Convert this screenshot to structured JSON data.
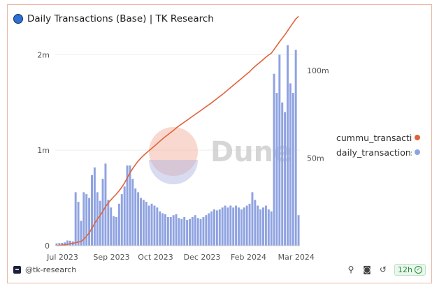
{
  "header": {
    "title": "Daily Transactions (Base) | TK Research"
  },
  "footer": {
    "handle": "@tk-research",
    "refresh_badge": "12h",
    "icons": [
      "pin-icon",
      "camera-icon",
      "refresh-icon",
      "check-icon"
    ]
  },
  "watermark": {
    "text": "Dune"
  },
  "colors": {
    "bars": "#8fa3e1",
    "line": "#e0623b",
    "logo": "#2f6fd6"
  },
  "chart_data": {
    "type": "bar",
    "title": "Daily Transactions (Base) | TK Research",
    "x_ticks": [
      "Jul 2023",
      "Sep 2023",
      "Oct 2023",
      "Dec 2023",
      "Feb 2024",
      "Mar 2024"
    ],
    "y_left_ticks": [
      "0",
      "1m",
      "2m"
    ],
    "y_left_range": [
      0,
      2200000
    ],
    "y_right_ticks": [
      "50m",
      "100m"
    ],
    "y_right_range": [
      0,
      120000000
    ],
    "grid": true,
    "legend_position": "right",
    "series": [
      {
        "name": "daily_transactions",
        "type": "bar",
        "axis": "left",
        "color": "#8fa3e1",
        "values": [
          25000,
          28000,
          30000,
          35000,
          55000,
          52000,
          45000,
          560000,
          460000,
          260000,
          560000,
          540000,
          500000,
          740000,
          820000,
          560000,
          470000,
          700000,
          860000,
          480000,
          400000,
          310000,
          300000,
          440000,
          540000,
          620000,
          840000,
          840000,
          700000,
          600000,
          560000,
          500000,
          480000,
          460000,
          420000,
          440000,
          420000,
          400000,
          360000,
          340000,
          330000,
          300000,
          300000,
          320000,
          330000,
          290000,
          280000,
          300000,
          270000,
          280000,
          300000,
          320000,
          290000,
          280000,
          300000,
          320000,
          340000,
          360000,
          380000,
          370000,
          380000,
          400000,
          420000,
          400000,
          420000,
          400000,
          420000,
          400000,
          380000,
          400000,
          420000,
          440000,
          560000,
          480000,
          420000,
          380000,
          400000,
          420000,
          380000,
          360000,
          1800000,
          1600000,
          2000000,
          1500000,
          1400000,
          2100000,
          1700000,
          1600000,
          2050000,
          320000
        ]
      },
      {
        "name": "cummu_transactio",
        "type": "line",
        "axis": "right",
        "color": "#e0623b",
        "values": [
          0,
          0.14,
          0.3,
          0.5,
          0.81,
          1.1,
          1.36,
          1.76,
          2.1,
          2.39,
          3.69,
          5.35,
          7.25,
          9.95,
          12.8,
          15.2,
          17.2,
          19.7,
          22.3,
          24.4,
          26.2,
          27.9,
          29.5,
          31.4,
          33.5,
          35.9,
          38.8,
          41.6,
          44.1,
          46.3,
          48.3,
          50.0,
          51.6,
          53.0,
          54.3,
          55.6,
          56.9,
          58.3,
          59.7,
          61.0,
          62.3,
          63.5,
          64.7,
          65.9,
          67.2,
          68.4,
          69.5,
          70.6,
          71.7,
          72.8,
          73.9,
          75.0,
          76.1,
          77.2,
          78.3,
          79.4,
          80.5,
          81.6,
          82.8,
          84.0,
          85.2,
          86.4,
          87.7,
          89.0,
          90.3,
          91.6,
          92.9,
          94.2,
          95.5,
          96.8,
          98.1,
          99.4,
          101.0,
          102.4,
          103.7,
          105.0,
          106.3,
          107.7,
          108.9,
          110.0,
          112.1,
          114.2,
          116.4,
          118.5,
          120.5,
          122.8,
          125.1,
          127.3,
          129.5,
          131.0
        ]
      }
    ]
  }
}
